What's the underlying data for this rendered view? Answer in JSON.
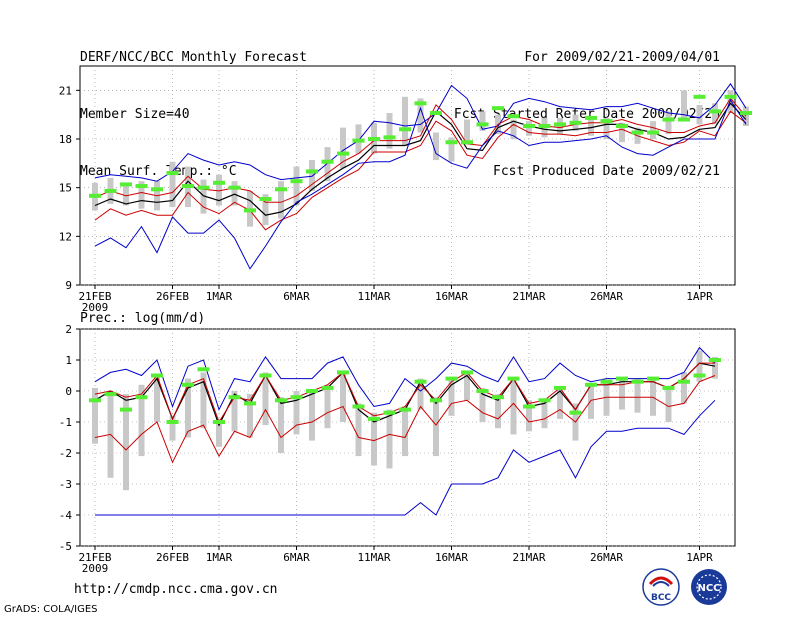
{
  "header": {
    "left": [
      "DERF/NCC/BCC Monthly Forecast",
      "Member Size=40",
      "Mean Surf. Temp.: °C"
    ],
    "right": [
      "For 2009/02/21-2009/04/01",
      "Fcst Started Refer Date 2009/02/20",
      "Fcst Produced Date 2009/02/21"
    ]
  },
  "lower_title": "Prec.: log(mm/d)",
  "footer": {
    "url": "http://cmdp.ncc.cma.gov.cn",
    "grads": "GrADS: COLA/IGES"
  },
  "logos": {
    "bcc": "BCC",
    "ncc": "NCC"
  },
  "colors": {
    "max_min": "#0000cc",
    "pct": "#cc0000",
    "mean": "#000000",
    "obs": "#55ee33",
    "bar": "#c8c8c8"
  },
  "chart_data": [
    {
      "type": "line",
      "title": "Mean Surf. Temp.: °C",
      "ylim": [
        9,
        22.5
      ],
      "yticks": [
        9,
        12,
        15,
        18,
        21
      ],
      "days": 40,
      "xticks": [
        {
          "day": 0,
          "label": "21FEB",
          "sub": "2009"
        },
        {
          "day": 5,
          "label": "26FEB"
        },
        {
          "day": 8,
          "label": "1MAR"
        },
        {
          "day": 13,
          "label": "6MAR"
        },
        {
          "day": 18,
          "label": "11MAR"
        },
        {
          "day": 23,
          "label": "16MAR"
        },
        {
          "day": 28,
          "label": "21MAR"
        },
        {
          "day": 33,
          "label": "26MAR"
        },
        {
          "day": 39,
          "label": "1APR"
        }
      ],
      "series": [
        {
          "name": "max",
          "color": "#0000cc",
          "values": [
            15.6,
            15.8,
            15.7,
            15.6,
            15.4,
            16.0,
            17.1,
            16.7,
            16.4,
            16.6,
            16.4,
            15.8,
            15.5,
            15.6,
            15.7,
            16.5,
            17.3,
            17.9,
            19.1,
            19.0,
            18.8,
            18.9,
            19.6,
            21.3,
            20.5,
            18.6,
            18.8,
            20.2,
            20.5,
            20.3,
            20.0,
            19.9,
            19.8,
            20.0,
            20.0,
            20.2,
            19.9,
            19.6,
            19.5,
            19.3,
            20.1,
            21.4,
            19.9
          ]
        },
        {
          "name": "p_high",
          "color": "#cc0000",
          "values": [
            14.4,
            14.8,
            14.5,
            14.7,
            14.5,
            14.7,
            15.7,
            14.9,
            14.8,
            15.0,
            14.8,
            14.1,
            14.1,
            14.5,
            15.2,
            15.9,
            16.6,
            17.1,
            17.9,
            17.9,
            17.9,
            18.2,
            20.1,
            19.2,
            17.7,
            17.6,
            18.9,
            19.4,
            19.2,
            18.8,
            18.7,
            18.9,
            19.0,
            19.0,
            19.2,
            18.9,
            18.7,
            18.4,
            18.4,
            18.8,
            19.0,
            20.5,
            19.4
          ]
        },
        {
          "name": "mean",
          "color": "#000000",
          "values": [
            13.9,
            14.3,
            14.0,
            14.2,
            14.1,
            14.2,
            15.4,
            14.5,
            14.2,
            14.6,
            14.2,
            13.3,
            13.5,
            14.0,
            14.9,
            15.6,
            16.2,
            16.7,
            17.6,
            17.6,
            17.6,
            17.9,
            19.7,
            18.9,
            17.4,
            17.3,
            18.7,
            19.1,
            18.8,
            18.6,
            18.5,
            18.6,
            18.7,
            18.9,
            18.9,
            18.6,
            18.4,
            18.0,
            18.1,
            18.6,
            18.7,
            20.2,
            19.2
          ]
        },
        {
          "name": "p_low",
          "color": "#cc0000",
          "values": [
            13.0,
            13.7,
            13.3,
            13.6,
            13.3,
            13.3,
            14.7,
            13.8,
            13.4,
            14.1,
            13.6,
            12.4,
            13.0,
            13.4,
            14.4,
            15.0,
            15.6,
            16.1,
            17.2,
            17.2,
            17.2,
            17.6,
            19.1,
            18.5,
            17.0,
            16.8,
            18.1,
            18.9,
            18.4,
            18.3,
            18.3,
            18.2,
            18.4,
            18.4,
            18.6,
            18.2,
            17.9,
            17.6,
            17.8,
            18.5,
            18.2,
            19.7,
            19.0
          ]
        },
        {
          "name": "min",
          "color": "#0000cc",
          "values": [
            11.4,
            11.9,
            11.3,
            12.6,
            11.0,
            13.2,
            12.2,
            12.2,
            13.0,
            11.9,
            10.0,
            11.4,
            12.9,
            14.1,
            14.6,
            15.2,
            15.8,
            16.5,
            16.6,
            16.6,
            17.0,
            19.9,
            17.1,
            16.5,
            16.2,
            17.6,
            18.5,
            18.2,
            17.6,
            17.8,
            17.8,
            17.9,
            18.0,
            18.2,
            17.5,
            17.1,
            17.0,
            17.5,
            18.0,
            18.0,
            18.0,
            20.4,
            18.9
          ]
        }
      ],
      "bars": [
        [
          13.6,
          15.3
        ],
        [
          14.0,
          15.6
        ],
        [
          13.9,
          15.2
        ],
        [
          13.7,
          15.4
        ],
        [
          13.6,
          15.4
        ],
        [
          13.8,
          16.6
        ],
        [
          13.8,
          16.3
        ],
        [
          13.4,
          15.5
        ],
        [
          13.9,
          15.8
        ],
        [
          13.9,
          15.4
        ],
        [
          12.6,
          14.8
        ],
        [
          12.7,
          14.6
        ],
        [
          13.1,
          15.4
        ],
        [
          13.9,
          16.3
        ],
        [
          14.8,
          16.7
        ],
        [
          15.4,
          17.5
        ],
        [
          16.2,
          18.7
        ],
        [
          17.1,
          18.9
        ],
        [
          17.1,
          19.0
        ],
        [
          17.4,
          19.6
        ],
        [
          17.6,
          20.6
        ],
        [
          18.4,
          20.5
        ],
        [
          16.7,
          18.4
        ],
        [
          16.6,
          18.1
        ],
        [
          17.7,
          19.2
        ],
        [
          18.5,
          19.7
        ],
        [
          18.3,
          19.5
        ],
        [
          18.0,
          19.2
        ],
        [
          18.2,
          19.1
        ],
        [
          18.1,
          19.3
        ],
        [
          18.3,
          19.3
        ],
        [
          18.5,
          19.5
        ],
        [
          18.2,
          19.2
        ],
        [
          18.0,
          19.3
        ],
        [
          17.8,
          19.0
        ],
        [
          17.7,
          18.7
        ],
        [
          18.0,
          19.1
        ],
        [
          18.3,
          19.7
        ],
        [
          19.2,
          21.0
        ],
        [
          18.9,
          20.1
        ],
        [
          18.9,
          20.2
        ],
        [
          19.6,
          21.0
        ],
        [
          18.8,
          20.0
        ]
      ],
      "obs": [
        14.5,
        14.8,
        15.2,
        15.1,
        14.9,
        15.9,
        15.1,
        15.0,
        15.3,
        15.0,
        13.6,
        14.3,
        14.9,
        15.4,
        16.0,
        16.6,
        17.1,
        17.9,
        18.0,
        18.1,
        18.6,
        20.2,
        19.6,
        17.8,
        17.8,
        18.9,
        19.9,
        19.4,
        18.8,
        18.8,
        18.9,
        19.0,
        19.3,
        19.1,
        18.8,
        18.4,
        18.4,
        19.2,
        19.2,
        20.6,
        19.7,
        20.6,
        19.6
      ]
    },
    {
      "type": "line",
      "title": "Prec.: log(mm/d)",
      "ylim": [
        -5,
        2
      ],
      "yticks": [
        -5,
        -4,
        -3,
        -2,
        -1,
        0,
        1,
        2
      ],
      "days": 40,
      "xticks": [
        {
          "day": 0,
          "label": "21FEB",
          "sub": "2009"
        },
        {
          "day": 5,
          "label": "26FEB"
        },
        {
          "day": 8,
          "label": "1MAR"
        },
        {
          "day": 13,
          "label": "6MAR"
        },
        {
          "day": 18,
          "label": "11MAR"
        },
        {
          "day": 23,
          "label": "16MAR"
        },
        {
          "day": 28,
          "label": "21MAR"
        },
        {
          "day": 33,
          "label": "26MAR"
        },
        {
          "day": 39,
          "label": "1APR"
        }
      ],
      "series": [
        {
          "name": "max",
          "color": "#0000cc",
          "values": [
            0.3,
            0.6,
            0.7,
            0.5,
            1.0,
            -0.5,
            0.8,
            1.0,
            -0.6,
            0.4,
            0.3,
            1.1,
            0.4,
            0.4,
            0.4,
            0.9,
            1.1,
            0.2,
            -0.5,
            -0.4,
            0.4,
            0.0,
            0.4,
            0.9,
            0.8,
            0.5,
            0.3,
            1.1,
            0.3,
            0.4,
            0.9,
            0.5,
            0.3,
            0.4,
            0.4,
            0.4,
            0.4,
            0.4,
            0.6,
            1.4,
            0.9
          ]
        },
        {
          "name": "mean",
          "color": "#000000",
          "values": [
            -0.3,
            0.0,
            -0.3,
            -0.2,
            0.4,
            -0.9,
            0.1,
            0.3,
            -1.1,
            -0.1,
            -0.4,
            0.5,
            -0.4,
            -0.3,
            -0.1,
            0.1,
            0.6,
            -0.6,
            -1.0,
            -0.8,
            -0.6,
            0.3,
            -0.4,
            0.2,
            0.5,
            -0.1,
            -0.3,
            0.4,
            -0.5,
            -0.4,
            0.0,
            -0.6,
            0.2,
            0.2,
            0.3,
            0.3,
            0.3,
            0.1,
            0.4,
            0.9,
            0.8
          ]
        },
        {
          "name": "p_high",
          "color": "#cc0000",
          "values": [
            -0.1,
            0.0,
            -0.2,
            -0.1,
            0.5,
            -0.9,
            0.2,
            0.4,
            -1.0,
            -0.2,
            -0.3,
            0.5,
            -0.3,
            -0.2,
            0.0,
            0.2,
            0.6,
            -0.5,
            -0.8,
            -0.7,
            -0.5,
            0.2,
            -0.3,
            0.3,
            0.6,
            0.0,
            -0.2,
            0.4,
            -0.4,
            -0.3,
            0.1,
            -0.6,
            0.2,
            0.2,
            0.2,
            0.3,
            0.3,
            0.1,
            0.4,
            0.9,
            0.9
          ]
        },
        {
          "name": "p_low",
          "color": "#cc0000",
          "values": [
            -1.5,
            -1.4,
            -1.9,
            -1.4,
            -1.0,
            -2.3,
            -1.3,
            -1.1,
            -2.1,
            -1.3,
            -1.5,
            -0.6,
            -1.5,
            -1.1,
            -1.0,
            -0.7,
            -0.5,
            -1.5,
            -1.6,
            -1.4,
            -1.5,
            -0.5,
            -1.1,
            -0.4,
            -0.3,
            -0.7,
            -0.9,
            -0.4,
            -1.0,
            -0.9,
            -0.6,
            -1.0,
            -0.3,
            -0.2,
            -0.2,
            -0.2,
            -0.2,
            -0.5,
            -0.4,
            0.3,
            0.5
          ]
        },
        {
          "name": "min",
          "color": "#0000cc",
          "values": [
            -4.0,
            -4.0,
            -4.0,
            -4.0,
            -4.0,
            -4.0,
            -4.0,
            -4.0,
            -4.0,
            -4.0,
            -4.0,
            -4.0,
            -4.0,
            -4.0,
            -4.0,
            -4.0,
            -4.0,
            -4.0,
            -4.0,
            -4.0,
            -4.0,
            -3.6,
            -4.0,
            -3.0,
            -3.0,
            -3.0,
            -2.8,
            -1.9,
            -2.3,
            -2.1,
            -1.9,
            -2.8,
            -1.8,
            -1.3,
            -1.3,
            -1.2,
            -1.2,
            -1.2,
            -1.4,
            -0.8,
            -0.3
          ]
        }
      ],
      "bars": [
        [
          -1.7,
          0.1
        ],
        [
          -2.8,
          0.0
        ],
        [
          -3.2,
          -0.1
        ],
        [
          -2.1,
          0.2
        ],
        [
          -1.0,
          0.5
        ],
        [
          -1.6,
          -0.8
        ],
        [
          -1.5,
          0.4
        ],
        [
          -1.2,
          0.6
        ],
        [
          -1.8,
          -0.9
        ],
        [
          -1.3,
          0.0
        ],
        [
          -1.5,
          -0.1
        ],
        [
          -1.1,
          0.6
        ],
        [
          -2.0,
          -0.2
        ],
        [
          -1.4,
          0.0
        ],
        [
          -1.6,
          0.0
        ],
        [
          -1.2,
          0.2
        ],
        [
          -1.0,
          0.6
        ],
        [
          -2.1,
          -0.4
        ],
        [
          -2.4,
          -0.7
        ],
        [
          -2.5,
          -0.6
        ],
        [
          -2.1,
          -0.5
        ],
        [
          -0.6,
          0.4
        ],
        [
          -2.1,
          -0.2
        ],
        [
          -0.8,
          0.4
        ],
        [
          -0.3,
          0.6
        ],
        [
          -1.0,
          0.1
        ],
        [
          -1.2,
          -0.1
        ],
        [
          -1.4,
          0.4
        ],
        [
          -1.3,
          -0.3
        ],
        [
          -1.2,
          -0.3
        ],
        [
          -0.9,
          0.1
        ],
        [
          -1.6,
          -0.4
        ],
        [
          -0.9,
          0.2
        ],
        [
          -0.8,
          0.3
        ],
        [
          -0.6,
          0.4
        ],
        [
          -0.7,
          0.4
        ],
        [
          -0.8,
          0.4
        ],
        [
          -1.0,
          0.1
        ],
        [
          -0.4,
          0.6
        ],
        [
          0.3,
          1.3
        ],
        [
          0.4,
          1.1
        ]
      ],
      "obs": [
        -0.3,
        -0.1,
        -0.6,
        -0.2,
        0.5,
        -1.0,
        0.2,
        0.7,
        -1.0,
        -0.2,
        -0.4,
        0.5,
        -0.3,
        -0.2,
        0.0,
        0.1,
        0.6,
        -0.5,
        -0.9,
        -0.7,
        -0.6,
        0.3,
        -0.3,
        0.4,
        0.6,
        0.0,
        -0.2,
        0.4,
        -0.5,
        -0.3,
        0.1,
        -0.7,
        0.2,
        0.3,
        0.4,
        0.3,
        0.4,
        0.1,
        0.3,
        0.5,
        1.0
      ]
    }
  ]
}
